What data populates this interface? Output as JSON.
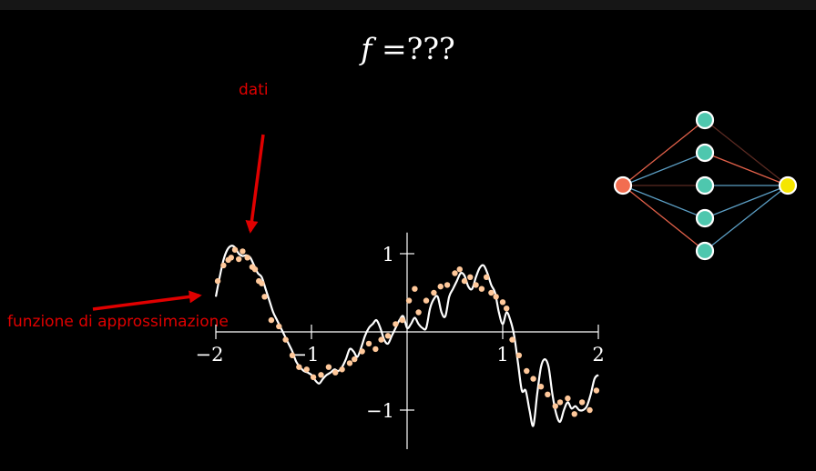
{
  "title": {
    "lhs": "f",
    "rhs": " =???"
  },
  "annotations": {
    "data_label": "dati",
    "function_label": "funzione di approssimazione"
  },
  "colors": {
    "background": "#000000",
    "curve": "#ffffff",
    "points": "#ffc89a",
    "annotation": "#e00000",
    "nn_input": "#f26d50",
    "nn_hidden": "#4ec7ae",
    "nn_output": "#f5e600",
    "nn_edge_warm": "#e3614a",
    "nn_edge_cool": "#5b9ec4"
  },
  "chart_data": {
    "type": "scatter",
    "xlim": [
      -2,
      2
    ],
    "ylim": [
      -1.5,
      1.5
    ],
    "x_ticks": [
      -2,
      -1,
      1,
      2
    ],
    "y_ticks": [
      1,
      -1
    ],
    "x_tick_labels": [
      "−2",
      "−1",
      "1",
      "2"
    ],
    "y_tick_labels": [
      "1",
      "−1"
    ],
    "grid": false,
    "series": [
      {
        "kind": "points",
        "x": [
          -1.98,
          -1.92,
          -1.87,
          -1.84,
          -1.8,
          -1.76,
          -1.72,
          -1.67,
          -1.62,
          -1.59,
          -1.55,
          -1.52,
          -1.49,
          -1.42,
          -1.34,
          -1.27,
          -1.2,
          -1.13,
          -1.05,
          -0.98,
          -0.9,
          -0.82,
          -0.75,
          -0.68,
          -0.6,
          -0.55,
          -0.47,
          -0.4,
          -0.33,
          -0.27,
          -0.2,
          -0.12,
          -0.05,
          0.02,
          0.08,
          0.12,
          0.2,
          0.28,
          0.35,
          0.42,
          0.5,
          0.55,
          0.6,
          0.66,
          0.72,
          0.78,
          0.83,
          0.88,
          0.93,
          1.0,
          1.04,
          1.1,
          1.17,
          1.25,
          1.32,
          1.4,
          1.47,
          1.55,
          1.6,
          1.68,
          1.75,
          1.83,
          1.91,
          1.98
        ],
        "y": [
          0.65,
          0.85,
          0.92,
          0.95,
          1.05,
          0.93,
          1.03,
          0.95,
          0.83,
          0.8,
          0.65,
          0.62,
          0.45,
          0.15,
          0.07,
          -0.1,
          -0.3,
          -0.45,
          -0.48,
          -0.58,
          -0.55,
          -0.45,
          -0.52,
          -0.48,
          -0.4,
          -0.35,
          -0.25,
          -0.15,
          -0.22,
          -0.1,
          -0.05,
          0.1,
          0.15,
          0.4,
          0.55,
          0.25,
          0.4,
          0.5,
          0.58,
          0.6,
          0.75,
          0.8,
          0.65,
          0.7,
          0.6,
          0.55,
          0.7,
          0.5,
          0.45,
          0.38,
          0.3,
          -0.1,
          -0.3,
          -0.5,
          -0.6,
          -0.7,
          -0.8,
          -0.95,
          -0.9,
          -0.85,
          -1.05,
          -0.9,
          -1.0,
          -0.75
        ]
      },
      {
        "kind": "line",
        "x": [
          -2.0,
          -1.96,
          -1.92,
          -1.88,
          -1.84,
          -1.8,
          -1.76,
          -1.72,
          -1.68,
          -1.64,
          -1.6,
          -1.56,
          -1.52,
          -1.48,
          -1.44,
          -1.4,
          -1.36,
          -1.32,
          -1.28,
          -1.24,
          -1.2,
          -1.16,
          -1.12,
          -1.08,
          -1.04,
          -1.0,
          -0.96,
          -0.92,
          -0.88,
          -0.84,
          -0.8,
          -0.76,
          -0.72,
          -0.68,
          -0.64,
          -0.6,
          -0.56,
          -0.52,
          -0.48,
          -0.44,
          -0.4,
          -0.36,
          -0.32,
          -0.28,
          -0.24,
          -0.2,
          -0.16,
          -0.12,
          -0.08,
          -0.04,
          0.0,
          0.04,
          0.08,
          0.12,
          0.16,
          0.2,
          0.24,
          0.28,
          0.32,
          0.36,
          0.4,
          0.44,
          0.48,
          0.52,
          0.56,
          0.6,
          0.64,
          0.68,
          0.72,
          0.76,
          0.8,
          0.84,
          0.88,
          0.92,
          0.96,
          1.0,
          1.04,
          1.08,
          1.12,
          1.16,
          1.2,
          1.24,
          1.28,
          1.32,
          1.36,
          1.4,
          1.44,
          1.48,
          1.52,
          1.56,
          1.6,
          1.64,
          1.68,
          1.72,
          1.76,
          1.8,
          1.84,
          1.88,
          1.92,
          1.96,
          2.0
        ],
        "y": [
          0.45,
          0.7,
          0.92,
          1.05,
          1.1,
          1.08,
          1.0,
          0.97,
          0.98,
          0.95,
          0.85,
          0.75,
          0.7,
          0.55,
          0.4,
          0.25,
          0.15,
          0.05,
          -0.05,
          -0.15,
          -0.25,
          -0.38,
          -0.45,
          -0.5,
          -0.52,
          -0.55,
          -0.62,
          -0.66,
          -0.6,
          -0.55,
          -0.52,
          -0.48,
          -0.5,
          -0.45,
          -0.35,
          -0.22,
          -0.25,
          -0.32,
          -0.2,
          -0.05,
          0.05,
          0.1,
          0.15,
          0.05,
          -0.1,
          -0.15,
          -0.05,
          0.05,
          0.15,
          0.2,
          0.05,
          0.1,
          0.18,
          0.1,
          0.05,
          0.05,
          0.3,
          0.42,
          0.45,
          0.25,
          0.2,
          0.45,
          0.55,
          0.65,
          0.75,
          0.72,
          0.58,
          0.55,
          0.7,
          0.82,
          0.85,
          0.75,
          0.6,
          0.5,
          0.25,
          0.1,
          0.25,
          0.15,
          -0.05,
          -0.4,
          -0.75,
          -0.75,
          -1.0,
          -1.2,
          -0.8,
          -0.45,
          -0.35,
          -0.45,
          -0.8,
          -1.05,
          -1.15,
          -1.0,
          -0.9,
          -0.98,
          -0.95,
          -1.0,
          -1.0,
          -0.95,
          -0.8,
          -0.6,
          -0.55
        ]
      }
    ]
  },
  "network": {
    "input_nodes": 1,
    "hidden_nodes": 5,
    "output_nodes": 1,
    "input_edge_tones": [
      "warm",
      "cool",
      "dark",
      "cool",
      "warm"
    ],
    "output_edge_tones": [
      "dark",
      "warm",
      "cool",
      "cool",
      "cool"
    ]
  }
}
